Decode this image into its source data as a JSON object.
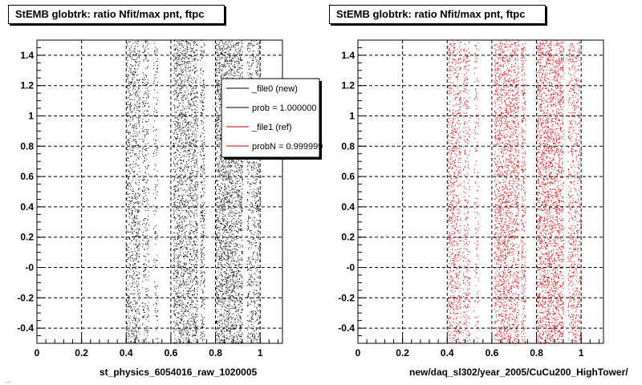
{
  "chart_data": [
    {
      "type": "scatter",
      "title": "StEMB globtrk: ratio Nfit/max pnt, ftpc",
      "xlabel": "st_physics_6054016_raw_1020005",
      "ylabel": "",
      "xlim": [
        0,
        1.1
      ],
      "ylim": [
        -0.5,
        1.5
      ],
      "x_ticks": [
        "0",
        "0.2",
        "0.4",
        "0.6",
        "0.8",
        "1"
      ],
      "y_ticks": [
        "-0.4",
        "-0.2",
        "-0",
        "0.2",
        "0.4",
        "0.6",
        "0.8",
        "1",
        "1.2",
        "1.4"
      ],
      "grid": true,
      "series": [
        {
          "color": "#000000",
          "bands": [
            [
              0.4,
              0.46,
              900
            ],
            [
              0.47,
              0.5,
              350
            ],
            [
              0.52,
              0.54,
              150
            ],
            [
              0.61,
              0.72,
              2000
            ],
            [
              0.73,
              0.75,
              350
            ],
            [
              0.8,
              0.92,
              2600
            ],
            [
              0.94,
              1.0,
              800
            ]
          ]
        }
      ],
      "legend": {
        "placement": "top-right",
        "entries": [
          {
            "label": "_file0 (new)",
            "color": "#000000"
          },
          {
            "label": "prob = 1.000000",
            "color": "#000000"
          },
          {
            "label": "_file1 (ref)",
            "color": "#cc0000"
          },
          {
            "label": "probN = 0.999999",
            "color": "#cc0000"
          }
        ]
      }
    },
    {
      "type": "scatter",
      "title": "StEMB globtrk: ratio Nfit/max pnt, ftpc",
      "xlabel": "new/daq_sl302/year_2005/CuCu200_HighTower/",
      "ylabel": "",
      "xlim": [
        0,
        1.1
      ],
      "ylim": [
        -0.5,
        1.5
      ],
      "x_ticks": [
        "0",
        "0.2",
        "0.4",
        "0.6",
        "0.8",
        "1"
      ],
      "y_ticks": [
        "-0.4",
        "-0.2",
        "-0",
        "0.2",
        "0.4",
        "0.6",
        "0.8",
        "1",
        "1.2",
        "1.4"
      ],
      "grid": true,
      "series": [
        {
          "color": "#cc0000",
          "bands": [
            [
              0.4,
              0.46,
              850
            ],
            [
              0.47,
              0.5,
              330
            ],
            [
              0.52,
              0.54,
              140
            ],
            [
              0.61,
              0.72,
              2000
            ],
            [
              0.73,
              0.75,
              330
            ],
            [
              0.8,
              0.92,
              2500
            ],
            [
              0.94,
              1.0,
              750
            ]
          ]
        }
      ]
    }
  ],
  "footer": "..."
}
